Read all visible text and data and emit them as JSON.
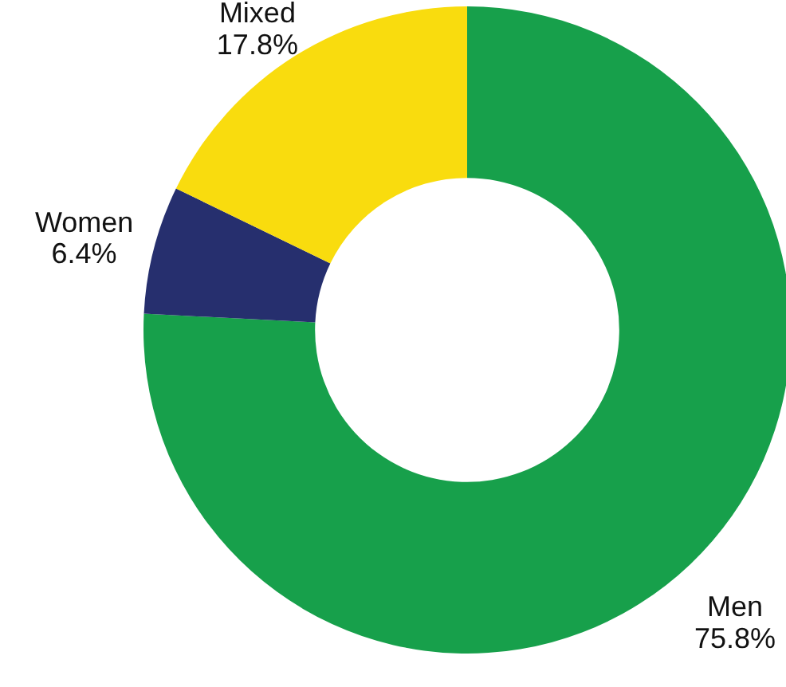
{
  "chart_data": {
    "type": "donut",
    "categories": [
      "Men",
      "Women",
      "Mixed"
    ],
    "values": [
      75.8,
      6.4,
      17.8
    ],
    "colors": [
      "#17a04b",
      "#262f6e",
      "#f9dc0e"
    ],
    "value_labels": [
      "75.8%",
      "6.4%",
      "17.8%"
    ]
  }
}
